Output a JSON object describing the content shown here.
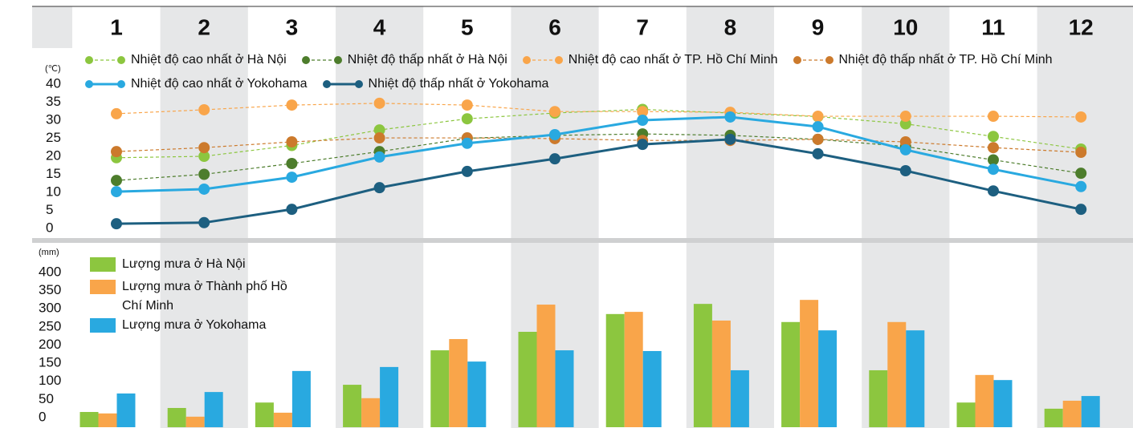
{
  "chart_data": [
    {
      "type": "line",
      "y_label": "(℃)",
      "categories": [
        "1",
        "2",
        "3",
        "4",
        "5",
        "6",
        "7",
        "8",
        "9",
        "10",
        "11",
        "12"
      ],
      "ylim": [
        0,
        40
      ],
      "yticks": [
        0,
        5,
        10,
        15,
        20,
        25,
        30,
        35,
        40
      ],
      "series": [
        {
          "name": "Nhiệt độ cao nhất ở Hà Nội",
          "color": "#8cc63f",
          "style": "dashed",
          "values": [
            19.6,
            20,
            23,
            27.3,
            30.4,
            32,
            33,
            32,
            31,
            29,
            25.5,
            22
          ]
        },
        {
          "name": "Nhiệt độ thấp nhất ở Hà Nội",
          "color": "#4d7d2c",
          "style": "dashed",
          "values": [
            13.3,
            15,
            18,
            21.3,
            25,
            25.8,
            26.2,
            25.8,
            24.7,
            22.7,
            19,
            15.3
          ]
        },
        {
          "name": "Nhiệt độ cao nhất ở TP. Hồ Chí Minh",
          "color": "#f9a54a",
          "style": "dashed",
          "values": [
            31.8,
            32.9,
            34.2,
            34.7,
            34.2,
            32.4,
            32.4,
            32.2,
            31.1,
            31.1,
            31.1,
            30.9
          ]
        },
        {
          "name": "Nhiệt độ thấp nhất ở TP. Hồ Chí Minh",
          "color": "#cc7a2c",
          "style": "dashed",
          "values": [
            21.3,
            22.4,
            24,
            25.1,
            25.1,
            24.9,
            24.4,
            24.4,
            24.7,
            24,
            22.4,
            21.1
          ]
        },
        {
          "name": "Nhiệt độ cao nhất ở Yokohama",
          "color": "#29a9e0",
          "style": "solid",
          "values": [
            10.2,
            10.9,
            14.2,
            19.8,
            23.6,
            26,
            30,
            30.9,
            28.2,
            21.8,
            16.4,
            11.6
          ]
        },
        {
          "name": "Nhiệt độ thấp nhất ở Yokohama",
          "color": "#1d5f80",
          "style": "solid",
          "values": [
            1.3,
            1.6,
            5.3,
            11.3,
            15.8,
            19.3,
            23.3,
            24.7,
            20.7,
            16,
            10.4,
            5.3
          ]
        }
      ]
    },
    {
      "type": "bar",
      "y_label": "(mm)",
      "ylim": [
        0,
        400
      ],
      "yticks": [
        0,
        50,
        100,
        150,
        200,
        250,
        300,
        350,
        400
      ],
      "series": [
        {
          "name": "Lượng mưa ở Hà Nội",
          "color": "#8cc63f",
          "values": [
            42,
            53,
            68,
            117,
            212,
            263,
            312,
            340,
            290,
            157,
            68,
            51
          ]
        },
        {
          "name": "Lượng mưa ở Thành phố Hồ Chí Minh",
          "color": "#f9a54a",
          "values": [
            38,
            29,
            40,
            80,
            243,
            338,
            318,
            294,
            351,
            290,
            144,
            73
          ]
        },
        {
          "name": "Lượng mưa ở Yokohama",
          "color": "#29a9e0",
          "values": [
            93,
            97,
            155,
            166,
            181,
            212,
            210,
            157,
            267,
            267,
            130,
            86
          ]
        }
      ]
    }
  ]
}
